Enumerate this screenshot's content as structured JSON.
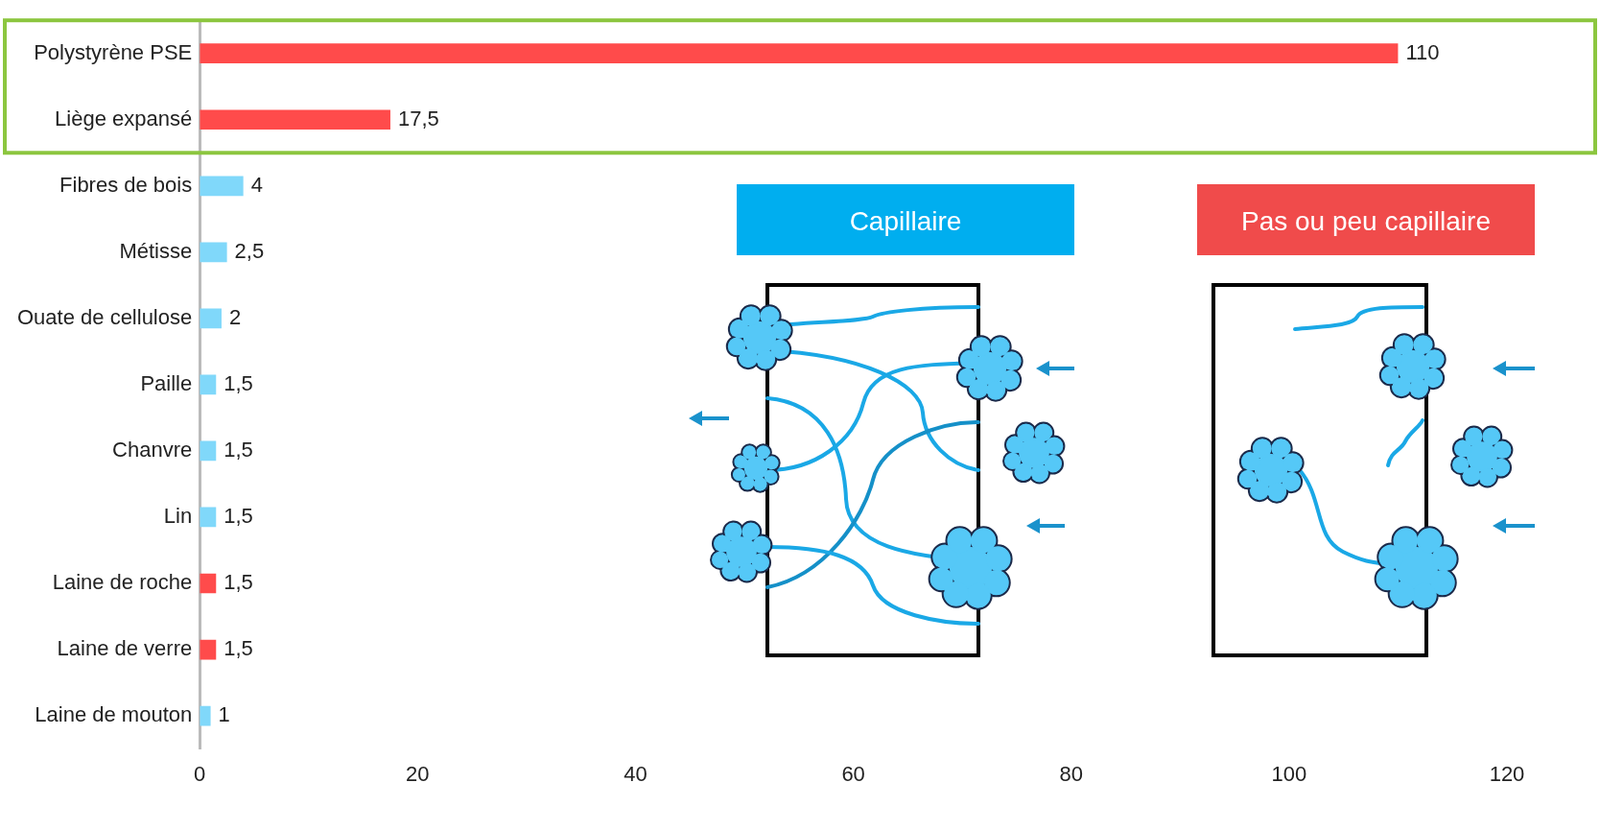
{
  "chart_data": {
    "type": "bar",
    "orientation": "horizontal",
    "categories": [
      "Polystyrène PSE",
      "Liège expansé",
      "Fibres de bois",
      "Métisse",
      "Ouate de cellulose",
      "Paille",
      "Chanvre",
      "Lin",
      "Laine de roche",
      "Laine de verre",
      "Laine de mouton"
    ],
    "values": [
      110,
      17.5,
      4,
      2.5,
      2,
      1.5,
      1.5,
      1.5,
      1.5,
      1.5,
      1
    ],
    "value_labels": [
      "110",
      "17,5",
      "4",
      "2,5",
      "2",
      "1,5",
      "1,5",
      "1,5",
      "1,5",
      "1,5",
      "1"
    ],
    "colors": [
      "#ff4b4b",
      "#ff4b4b",
      "#80d8fa",
      "#80d8fa",
      "#80d8fa",
      "#80d8fa",
      "#80d8fa",
      "#80d8fa",
      "#ff4b4b",
      "#ff4b4b",
      "#80d8fa"
    ],
    "xlim": [
      0,
      120
    ],
    "xticks": [
      0,
      20,
      40,
      60,
      80,
      100,
      120
    ],
    "grid": false,
    "data_labels": true,
    "annotations": [
      {
        "text": "Capillaire",
        "color": "#00aeef"
      },
      {
        "text": "Pas ou peu capillaire",
        "color": "#f04b4b"
      }
    ]
  }
}
